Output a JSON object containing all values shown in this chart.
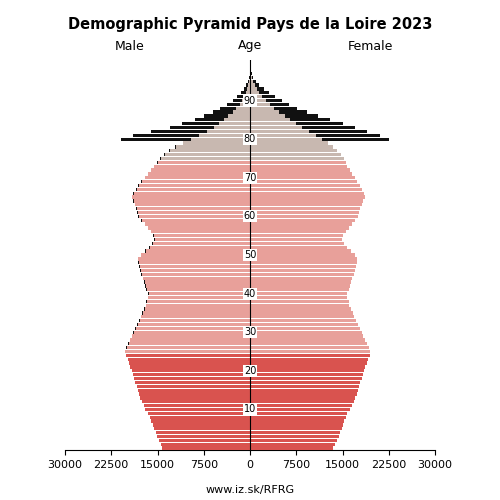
{
  "title": "Demographic Pyramid Pays de la Loire 2023",
  "label_male": "Male",
  "label_female": "Female",
  "label_age": "Age",
  "footer": "www.iz.sk/RFRG",
  "xlim": 30000,
  "bar_height": 0.85,
  "color_young": "#d9534f",
  "color_mid": "#e8a09a",
  "color_old": "#c8b8b0",
  "color_ref": "#111111",
  "age_young_max": 25,
  "age_old_min": 75,
  "yticks": [
    10,
    20,
    30,
    40,
    50,
    60,
    70,
    80,
    90
  ],
  "male": [
    14200,
    14500,
    14800,
    15100,
    15300,
    15600,
    15800,
    16000,
    16200,
    16500,
    17000,
    17200,
    17500,
    17800,
    18000,
    18200,
    18400,
    18600,
    18800,
    19000,
    19200,
    19400,
    19600,
    19800,
    20100,
    20200,
    20000,
    19700,
    19400,
    19100,
    18800,
    18500,
    18200,
    17900,
    17600,
    17400,
    17100,
    16800,
    16700,
    16500,
    16400,
    16700,
    16900,
    17100,
    17300,
    17500,
    17700,
    17900,
    18000,
    18100,
    17600,
    16900,
    16200,
    15800,
    15400,
    15600,
    16000,
    16500,
    17000,
    17500,
    18000,
    18200,
    18400,
    18600,
    18800,
    19100,
    18800,
    18400,
    18000,
    17500,
    17000,
    16500,
    16000,
    15500,
    15000,
    14500,
    13800,
    13000,
    12000,
    10800,
    9500,
    8200,
    7000,
    5900,
    5000,
    4200,
    3500,
    2800,
    2200,
    1700,
    1300,
    950,
    650,
    420,
    260,
    150,
    80,
    40,
    15,
    5
  ],
  "female": [
    13500,
    13800,
    14100,
    14400,
    14600,
    14900,
    15100,
    15300,
    15500,
    15800,
    16200,
    16500,
    16800,
    17100,
    17300,
    17500,
    17700,
    17900,
    18100,
    18300,
    18500,
    18700,
    18900,
    19100,
    19400,
    19500,
    19300,
    19000,
    18700,
    18400,
    18100,
    17800,
    17500,
    17200,
    16900,
    16700,
    16400,
    16100,
    16000,
    15800,
    15700,
    16000,
    16200,
    16400,
    16600,
    16800,
    17000,
    17200,
    17300,
    17400,
    17000,
    16400,
    15700,
    15300,
    14900,
    15100,
    15500,
    16000,
    16500,
    17000,
    17500,
    17700,
    17900,
    18100,
    18300,
    18700,
    18500,
    18200,
    17800,
    17400,
    17000,
    16600,
    16200,
    15800,
    15500,
    15200,
    14700,
    14100,
    13400,
    12600,
    11700,
    10700,
    9600,
    8500,
    7500,
    6500,
    5600,
    4700,
    3900,
    3200,
    2600,
    2000,
    1500,
    1100,
    750,
    480,
    280,
    150,
    60,
    20
  ],
  "male_ref": [
    14000,
    14300,
    14600,
    14900,
    15100,
    15400,
    15600,
    15800,
    16000,
    16300,
    16800,
    17000,
    17300,
    17600,
    17800,
    18000,
    18200,
    18400,
    18600,
    18800,
    19100,
    19300,
    19600,
    19800,
    20100,
    20300,
    20100,
    19800,
    19500,
    19200,
    18900,
    18600,
    18300,
    18000,
    17700,
    17500,
    17200,
    16900,
    16800,
    16600,
    16500,
    16800,
    17000,
    17200,
    17400,
    17600,
    17800,
    18000,
    18100,
    18200,
    17700,
    17000,
    16300,
    15900,
    15500,
    15700,
    16100,
    16600,
    17100,
    17600,
    18100,
    18300,
    18500,
    18700,
    18900,
    19200,
    18900,
    18500,
    18100,
    17600,
    17100,
    16600,
    16100,
    15600,
    15100,
    14600,
    13900,
    13100,
    12100,
    10900,
    21000,
    19000,
    16000,
    13000,
    11000,
    9000,
    7500,
    6000,
    4800,
    3700,
    2800,
    2100,
    1450,
    950,
    580,
    320,
    160,
    75,
    28,
    8
  ],
  "female_ref": [
    12900,
    13200,
    13500,
    13800,
    14000,
    14300,
    14500,
    14700,
    14900,
    15200,
    15600,
    15900,
    16200,
    16500,
    16700,
    16900,
    17100,
    17300,
    17500,
    17700,
    17900,
    18100,
    18300,
    18500,
    18800,
    18900,
    18700,
    18400,
    18100,
    17800,
    17500,
    17200,
    16900,
    16600,
    16300,
    16100,
    15800,
    15500,
    15400,
    15200,
    15100,
    15400,
    15600,
    15800,
    16000,
    16200,
    16400,
    16600,
    16700,
    16800,
    16400,
    15800,
    15100,
    14700,
    14300,
    14500,
    14900,
    15400,
    15900,
    16400,
    16900,
    17100,
    17300,
    17500,
    17700,
    18100,
    17900,
    17600,
    17200,
    16800,
    16400,
    16000,
    15600,
    15200,
    14900,
    14600,
    14100,
    13500,
    12800,
    12000,
    22500,
    21000,
    19000,
    17000,
    15000,
    13000,
    11000,
    9200,
    7700,
    6400,
    5200,
    4100,
    3100,
    2200,
    1500,
    950,
    560,
    300,
    120,
    40
  ]
}
